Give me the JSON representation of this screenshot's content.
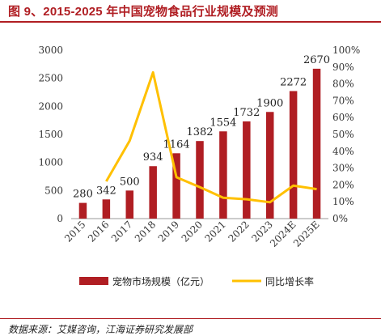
{
  "figure": {
    "title": "图 9、2015-2025 年中国宠物食品行业规模及预测",
    "source": "数据来源：艾媒咨询，江海证券研究发展部"
  },
  "colors": {
    "title": "#b01e23",
    "bar": "#b01e23",
    "line": "#ffc000",
    "axis_text": "#333333"
  },
  "chart_data": {
    "type": "bar+line",
    "categories": [
      "2015",
      "2016",
      "2017",
      "2018",
      "2019",
      "2020",
      "2021",
      "2022",
      "2023",
      "2024E",
      "2025E"
    ],
    "series": [
      {
        "name": "宠物市场规模（亿元）",
        "type": "bar",
        "axis": "left",
        "values": [
          280,
          342,
          500,
          934,
          1164,
          1382,
          1554,
          1732,
          1900,
          2272,
          2670
        ]
      },
      {
        "name": "同比增长率",
        "type": "line",
        "axis": "right",
        "values": [
          null,
          22.1,
          46.2,
          86.8,
          24.6,
          18.7,
          12.4,
          11.5,
          9.7,
          19.6,
          17.5
        ]
      }
    ],
    "y_left": {
      "lim": [
        0,
        3000
      ],
      "ticks": [
        "0",
        "500",
        "1000",
        "1500",
        "2000",
        "2500",
        "3000"
      ]
    },
    "y_right": {
      "lim": [
        0,
        100
      ],
      "ticks": [
        "0%",
        "10%",
        "20%",
        "30%",
        "40%",
        "50%",
        "60%",
        "70%",
        "80%",
        "90%",
        "100%"
      ]
    },
    "data_labels": [
      "280",
      "342",
      "500",
      "934",
      "1164",
      "1382",
      "1554",
      "1732",
      "1900",
      "2272",
      "2670"
    ],
    "legend": {
      "position": "bottom",
      "items": [
        "宠物市场规模（亿元）",
        "同比增长率"
      ]
    },
    "grid": false
  }
}
